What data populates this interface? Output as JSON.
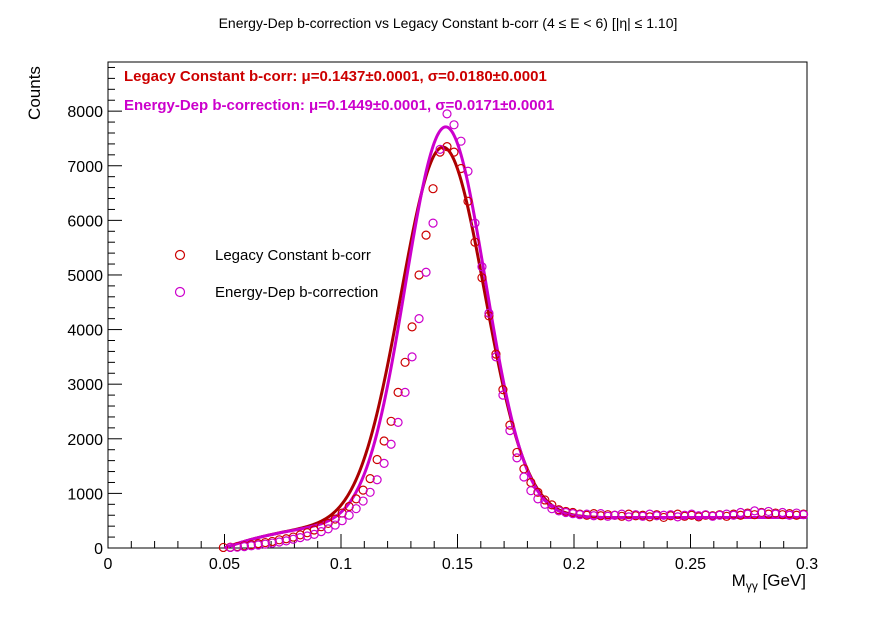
{
  "chart_data": {
    "type": "scatter",
    "title": "Energy-Dep b-correction vs Legacy Constant b-corr   (4 ≤ E < 6)   [|η| ≤ 1.10]",
    "xlabel": "Mγγ [GeV]",
    "ylabel": "Counts",
    "xlim": [
      0,
      0.3
    ],
    "ylim": [
      0,
      8900
    ],
    "x_ticks": [
      0,
      0.05,
      0.1,
      0.15,
      0.2,
      0.25,
      0.3
    ],
    "x_tick_labels": [
      "0",
      "0.05",
      "0.1",
      "0.15",
      "0.2",
      "0.25",
      "0.3"
    ],
    "y_ticks": [
      0,
      1000,
      2000,
      3000,
      4000,
      5000,
      6000,
      7000,
      8000
    ],
    "y_tick_labels": [
      "0",
      "1000",
      "2000",
      "3000",
      "4000",
      "5000",
      "6000",
      "7000",
      "8000"
    ],
    "legend_position": "center-left",
    "annotations": [
      {
        "text": "Legacy Constant b-corr: μ=0.1437±0.0001,  σ=0.0180±0.0001",
        "color": "#cc0000"
      },
      {
        "text": "Energy-Dep b-correction: μ=0.1449±0.0001,  σ=0.0171±0.0001",
        "color": "#cc00cc"
      }
    ],
    "series": [
      {
        "name": "Legacy Constant b-corr",
        "color": "#cc0000",
        "fit_color": "#aa0000",
        "marker": "open-circle",
        "fit": {
          "mu": 0.1437,
          "sigma": 0.018,
          "amplitude": 6820,
          "bkg_amplitude": 560,
          "bkg_mass": 0.05
        },
        "points": [
          {
            "x": 0.0495,
            "y": 10
          },
          {
            "x": 0.0525,
            "y": 15
          },
          {
            "x": 0.0555,
            "y": 25
          },
          {
            "x": 0.0585,
            "y": 40
          },
          {
            "x": 0.0615,
            "y": 60
          },
          {
            "x": 0.0645,
            "y": 80
          },
          {
            "x": 0.0675,
            "y": 100
          },
          {
            "x": 0.0705,
            "y": 120
          },
          {
            "x": 0.0735,
            "y": 150
          },
          {
            "x": 0.0765,
            "y": 170
          },
          {
            "x": 0.0795,
            "y": 200
          },
          {
            "x": 0.0825,
            "y": 240
          },
          {
            "x": 0.0855,
            "y": 280
          },
          {
            "x": 0.0885,
            "y": 330
          },
          {
            "x": 0.0915,
            "y": 390
          },
          {
            "x": 0.0945,
            "y": 450
          },
          {
            "x": 0.0975,
            "y": 530
          },
          {
            "x": 0.1005,
            "y": 640
          },
          {
            "x": 0.1035,
            "y": 760
          },
          {
            "x": 0.1065,
            "y": 900
          },
          {
            "x": 0.1095,
            "y": 1060
          },
          {
            "x": 0.1125,
            "y": 1270
          },
          {
            "x": 0.1155,
            "y": 1620
          },
          {
            "x": 0.1185,
            "y": 1960
          },
          {
            "x": 0.1215,
            "y": 2320
          },
          {
            "x": 0.1245,
            "y": 2850
          },
          {
            "x": 0.1275,
            "y": 3400
          },
          {
            "x": 0.1305,
            "y": 4050
          },
          {
            "x": 0.1335,
            "y": 5000
          },
          {
            "x": 0.1365,
            "y": 5730
          },
          {
            "x": 0.1395,
            "y": 6580
          },
          {
            "x": 0.1425,
            "y": 7250
          },
          {
            "x": 0.1455,
            "y": 7350
          },
          {
            "x": 0.1485,
            "y": 7250
          },
          {
            "x": 0.1515,
            "y": 6950
          },
          {
            "x": 0.1545,
            "y": 6350
          },
          {
            "x": 0.1575,
            "y": 5600
          },
          {
            "x": 0.1605,
            "y": 4950
          },
          {
            "x": 0.1635,
            "y": 4250
          },
          {
            "x": 0.1665,
            "y": 3550
          },
          {
            "x": 0.1695,
            "y": 2900
          },
          {
            "x": 0.1725,
            "y": 2250
          },
          {
            "x": 0.1755,
            "y": 1750
          },
          {
            "x": 0.1785,
            "y": 1450
          },
          {
            "x": 0.1815,
            "y": 1200
          },
          {
            "x": 0.1845,
            "y": 1020
          },
          {
            "x": 0.1875,
            "y": 880
          },
          {
            "x": 0.1905,
            "y": 790
          },
          {
            "x": 0.1935,
            "y": 700
          },
          {
            "x": 0.1965,
            "y": 670
          },
          {
            "x": 0.1995,
            "y": 650
          },
          {
            "x": 0.2025,
            "y": 620
          },
          {
            "x": 0.2055,
            "y": 600
          },
          {
            "x": 0.2085,
            "y": 630
          },
          {
            "x": 0.2115,
            "y": 590
          },
          {
            "x": 0.2145,
            "y": 610
          },
          {
            "x": 0.2175,
            "y": 600
          },
          {
            "x": 0.2205,
            "y": 580
          },
          {
            "x": 0.2235,
            "y": 620
          },
          {
            "x": 0.2265,
            "y": 590
          },
          {
            "x": 0.2295,
            "y": 600
          },
          {
            "x": 0.2325,
            "y": 570
          },
          {
            "x": 0.2355,
            "y": 610
          },
          {
            "x": 0.2385,
            "y": 560
          },
          {
            "x": 0.2415,
            "y": 590
          },
          {
            "x": 0.2445,
            "y": 620
          },
          {
            "x": 0.2475,
            "y": 580
          },
          {
            "x": 0.2505,
            "y": 600
          },
          {
            "x": 0.2535,
            "y": 570
          },
          {
            "x": 0.2565,
            "y": 600
          },
          {
            "x": 0.2595,
            "y": 590
          },
          {
            "x": 0.2625,
            "y": 610
          },
          {
            "x": 0.2655,
            "y": 580
          },
          {
            "x": 0.2685,
            "y": 620
          },
          {
            "x": 0.2715,
            "y": 600
          },
          {
            "x": 0.2745,
            "y": 640
          },
          {
            "x": 0.2775,
            "y": 610
          },
          {
            "x": 0.2805,
            "y": 650
          },
          {
            "x": 0.2835,
            "y": 620
          },
          {
            "x": 0.2865,
            "y": 640
          },
          {
            "x": 0.2895,
            "y": 610
          },
          {
            "x": 0.2925,
            "y": 630
          },
          {
            "x": 0.2955,
            "y": 600
          },
          {
            "x": 0.2985,
            "y": 620
          }
        ]
      },
      {
        "name": "Energy-Dep b-correction",
        "color": "#cc00cc",
        "fit_color": "#cc00cc",
        "marker": "open-circle",
        "fit": {
          "mu": 0.1449,
          "sigma": 0.0171,
          "amplitude": 7190,
          "bkg_amplitude": 560,
          "bkg_mass": 0.05
        },
        "points": [
          {
            "x": 0.0525,
            "y": 10
          },
          {
            "x": 0.0555,
            "y": 15
          },
          {
            "x": 0.0585,
            "y": 25
          },
          {
            "x": 0.0615,
            "y": 40
          },
          {
            "x": 0.0645,
            "y": 55
          },
          {
            "x": 0.0675,
            "y": 70
          },
          {
            "x": 0.0705,
            "y": 90
          },
          {
            "x": 0.0735,
            "y": 110
          },
          {
            "x": 0.0765,
            "y": 130
          },
          {
            "x": 0.0795,
            "y": 160
          },
          {
            "x": 0.0825,
            "y": 190
          },
          {
            "x": 0.0855,
            "y": 220
          },
          {
            "x": 0.0885,
            "y": 250
          },
          {
            "x": 0.0915,
            "y": 300
          },
          {
            "x": 0.0945,
            "y": 350
          },
          {
            "x": 0.0975,
            "y": 420
          },
          {
            "x": 0.1005,
            "y": 500
          },
          {
            "x": 0.1035,
            "y": 600
          },
          {
            "x": 0.1065,
            "y": 720
          },
          {
            "x": 0.1095,
            "y": 860
          },
          {
            "x": 0.1125,
            "y": 1020
          },
          {
            "x": 0.1155,
            "y": 1250
          },
          {
            "x": 0.1185,
            "y": 1550
          },
          {
            "x": 0.1215,
            "y": 1900
          },
          {
            "x": 0.1245,
            "y": 2300
          },
          {
            "x": 0.1275,
            "y": 2850
          },
          {
            "x": 0.1305,
            "y": 3500
          },
          {
            "x": 0.1335,
            "y": 4200
          },
          {
            "x": 0.1365,
            "y": 5050
          },
          {
            "x": 0.1395,
            "y": 5950
          },
          {
            "x": 0.1425,
            "y": 7300
          },
          {
            "x": 0.1455,
            "y": 7950
          },
          {
            "x": 0.1485,
            "y": 7750
          },
          {
            "x": 0.1515,
            "y": 7450
          },
          {
            "x": 0.1545,
            "y": 6900
          },
          {
            "x": 0.1575,
            "y": 5950
          },
          {
            "x": 0.1605,
            "y": 5150
          },
          {
            "x": 0.1635,
            "y": 4300
          },
          {
            "x": 0.1665,
            "y": 3500
          },
          {
            "x": 0.1695,
            "y": 2800
          },
          {
            "x": 0.1725,
            "y": 2150
          },
          {
            "x": 0.1755,
            "y": 1650
          },
          {
            "x": 0.1785,
            "y": 1300
          },
          {
            "x": 0.1815,
            "y": 1050
          },
          {
            "x": 0.1845,
            "y": 900
          },
          {
            "x": 0.1875,
            "y": 800
          },
          {
            "x": 0.1905,
            "y": 720
          },
          {
            "x": 0.1935,
            "y": 680
          },
          {
            "x": 0.1965,
            "y": 650
          },
          {
            "x": 0.1995,
            "y": 630
          },
          {
            "x": 0.2025,
            "y": 610
          },
          {
            "x": 0.2055,
            "y": 620
          },
          {
            "x": 0.2085,
            "y": 590
          },
          {
            "x": 0.2115,
            "y": 630
          },
          {
            "x": 0.2145,
            "y": 580
          },
          {
            "x": 0.2175,
            "y": 600
          },
          {
            "x": 0.2205,
            "y": 620
          },
          {
            "x": 0.2235,
            "y": 570
          },
          {
            "x": 0.2265,
            "y": 610
          },
          {
            "x": 0.2295,
            "y": 580
          },
          {
            "x": 0.2325,
            "y": 620
          },
          {
            "x": 0.2355,
            "y": 590
          },
          {
            "x": 0.2385,
            "y": 600
          },
          {
            "x": 0.2415,
            "y": 610
          },
          {
            "x": 0.2445,
            "y": 570
          },
          {
            "x": 0.2475,
            "y": 600
          },
          {
            "x": 0.2505,
            "y": 620
          },
          {
            "x": 0.2535,
            "y": 590
          },
          {
            "x": 0.2565,
            "y": 610
          },
          {
            "x": 0.2595,
            "y": 580
          },
          {
            "x": 0.2625,
            "y": 600
          },
          {
            "x": 0.2655,
            "y": 620
          },
          {
            "x": 0.2685,
            "y": 600
          },
          {
            "x": 0.2715,
            "y": 650
          },
          {
            "x": 0.2745,
            "y": 620
          },
          {
            "x": 0.2775,
            "y": 680
          },
          {
            "x": 0.2805,
            "y": 640
          },
          {
            "x": 0.2835,
            "y": 670
          },
          {
            "x": 0.2865,
            "y": 620
          },
          {
            "x": 0.2895,
            "y": 650
          },
          {
            "x": 0.2925,
            "y": 600
          },
          {
            "x": 0.2955,
            "y": 640
          },
          {
            "x": 0.2985,
            "y": 610
          }
        ]
      }
    ]
  }
}
